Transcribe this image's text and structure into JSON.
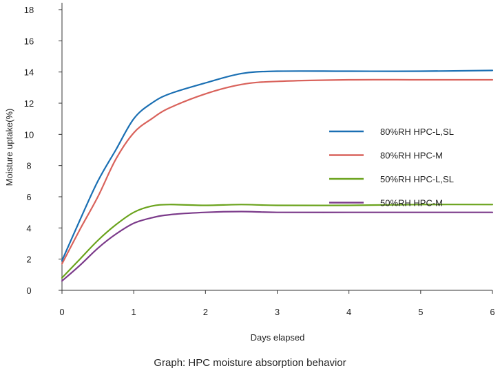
{
  "caption": "Graph: HPC moisture absorption behavior",
  "chart_data": {
    "type": "line",
    "title": "",
    "xlabel": "Days elapsed",
    "ylabel": "Moisture uptake(%)",
    "xlim": [
      0,
      6
    ],
    "ylim": [
      0,
      18
    ],
    "x_ticks": [
      0,
      1,
      2,
      3,
      4,
      5,
      6
    ],
    "y_ticks": [
      0,
      2,
      4,
      6,
      8,
      10,
      12,
      14,
      16,
      18
    ],
    "grid": false,
    "legend_position": "right",
    "series": [
      {
        "name": "80%RH HPC-L,SL",
        "color": "#1a6fb3",
        "points": [
          [
            0,
            1.9
          ],
          [
            0.25,
            4.5
          ],
          [
            0.5,
            7.0
          ],
          [
            0.75,
            9.0
          ],
          [
            1.0,
            11.0
          ],
          [
            1.25,
            12.0
          ],
          [
            1.5,
            12.6
          ],
          [
            2.0,
            13.3
          ],
          [
            2.5,
            13.9
          ],
          [
            3.0,
            14.05
          ],
          [
            4.0,
            14.05
          ],
          [
            5.0,
            14.05
          ],
          [
            6.0,
            14.1
          ]
        ]
      },
      {
        "name": "80%RH HPC-M",
        "color": "#d9625b",
        "points": [
          [
            0,
            1.7
          ],
          [
            0.25,
            3.9
          ],
          [
            0.5,
            6.0
          ],
          [
            0.75,
            8.4
          ],
          [
            1.0,
            10.1
          ],
          [
            1.25,
            11.0
          ],
          [
            1.5,
            11.7
          ],
          [
            2.0,
            12.6
          ],
          [
            2.5,
            13.2
          ],
          [
            3.0,
            13.4
          ],
          [
            4.0,
            13.5
          ],
          [
            5.0,
            13.5
          ],
          [
            6.0,
            13.5
          ]
        ]
      },
      {
        "name": "50%RH HPC-L,SL",
        "color": "#6aa31c",
        "points": [
          [
            0,
            0.8
          ],
          [
            0.25,
            2.0
          ],
          [
            0.5,
            3.2
          ],
          [
            0.75,
            4.2
          ],
          [
            1.0,
            5.0
          ],
          [
            1.25,
            5.4
          ],
          [
            1.5,
            5.5
          ],
          [
            2.0,
            5.45
          ],
          [
            2.5,
            5.5
          ],
          [
            3.0,
            5.45
          ],
          [
            4.0,
            5.45
          ],
          [
            5.0,
            5.5
          ],
          [
            6.0,
            5.5
          ]
        ]
      },
      {
        "name": "50%RH HPC-M",
        "color": "#7b3a8a",
        "points": [
          [
            0,
            0.6
          ],
          [
            0.25,
            1.6
          ],
          [
            0.5,
            2.7
          ],
          [
            0.75,
            3.6
          ],
          [
            1.0,
            4.3
          ],
          [
            1.25,
            4.65
          ],
          [
            1.5,
            4.85
          ],
          [
            2.0,
            5.0
          ],
          [
            2.5,
            5.05
          ],
          [
            3.0,
            5.0
          ],
          [
            4.0,
            5.0
          ],
          [
            5.0,
            5.0
          ],
          [
            6.0,
            5.0
          ]
        ]
      }
    ]
  }
}
